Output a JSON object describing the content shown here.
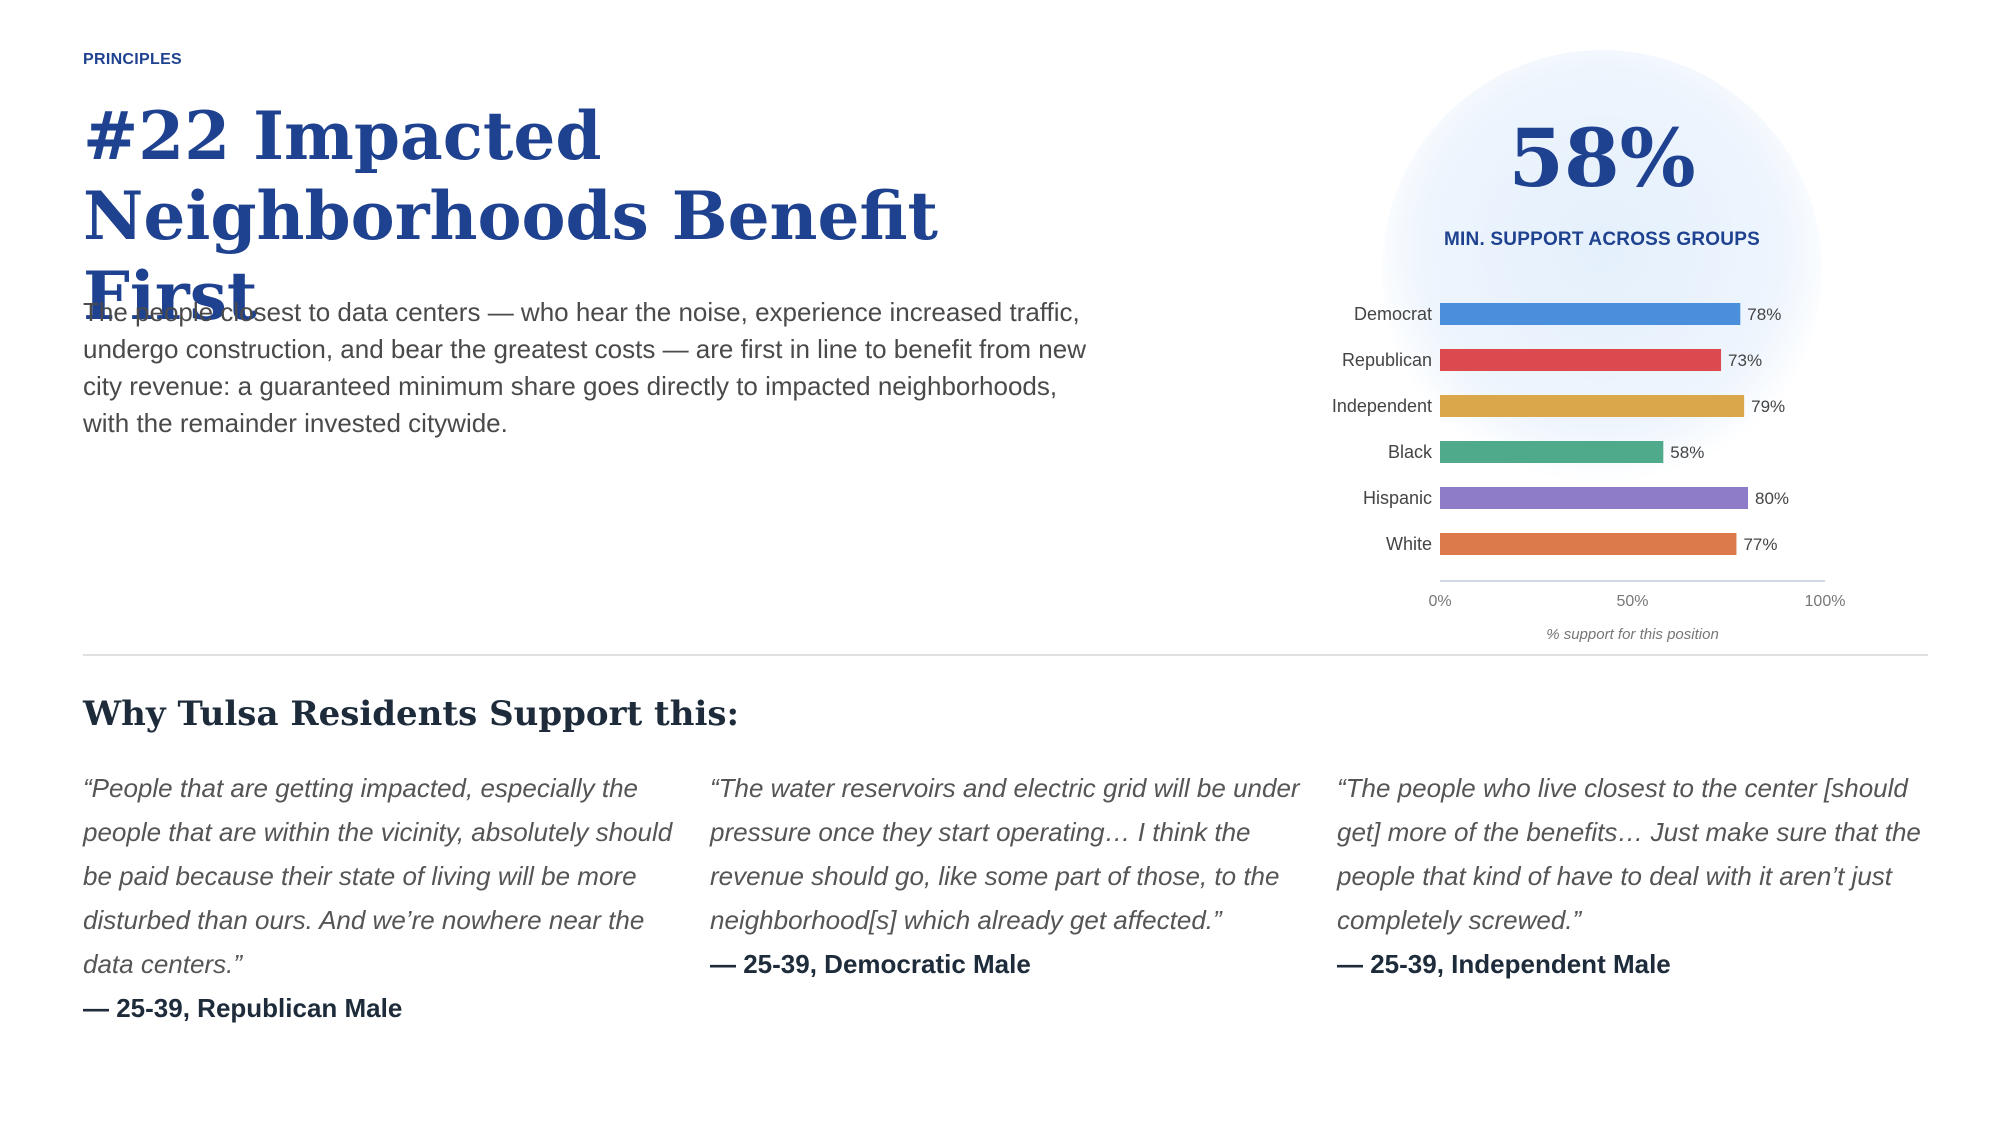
{
  "header": {
    "eyebrow": "PRINCIPLES",
    "title": "#22 Impacted Neighborhoods Benefit First",
    "intro": "The people closest to data centers — who hear the noise, experience increased traffic, undergo construction, and bear the greatest costs — are first in line to benefit from new city revenue: a guaranteed minimum share goes directly to impacted neighborhoods, with the remainder invested citywide."
  },
  "stat": {
    "value": "58%",
    "label": "MIN. SUPPORT ACROSS GROUPS"
  },
  "chart_data": {
    "type": "bar",
    "orientation": "horizontal",
    "categories": [
      "Democrat",
      "Republican",
      "Independent",
      "Black",
      "Hispanic",
      "White"
    ],
    "values": [
      78,
      73,
      79,
      58,
      80,
      77
    ],
    "value_labels": [
      "78%",
      "73%",
      "79%",
      "58%",
      "80%",
      "77%"
    ],
    "colors": [
      "#4a8fdb",
      "#dc4a4f",
      "#daa84a",
      "#4faa8c",
      "#8f7cc8",
      "#dc7a4a"
    ],
    "xlim": [
      0,
      100
    ],
    "x_ticks": [
      0,
      50,
      100
    ],
    "x_tick_labels": [
      "0%",
      "50%",
      "100%"
    ],
    "xlabel": "% support for this position",
    "ylabel": "",
    "grid": false
  },
  "section": {
    "heading": "Why Tulsa Residents Support this:"
  },
  "quotes": [
    {
      "text": "“People that are getting impacted, especially the people that are within the vicinity, absolutely should be paid because their state of living will be more disturbed than ours. And we’re nowhere near the data centers.”",
      "attribution": "— 25-39, Republican Male"
    },
    {
      "text": "“The water reservoirs and electric grid will be under pressure once they start operating… I think the revenue should go, like some part of those, to the neighborhood[s] which already get affected.”",
      "attribution": "— 25-39, Democratic Male"
    },
    {
      "text": "“The people who live closest to the center [should get] more of the benefits… Just make sure that the people that kind of have to deal with it aren’t just completely screwed.”",
      "attribution": "— 25-39, Independent Male"
    }
  ]
}
